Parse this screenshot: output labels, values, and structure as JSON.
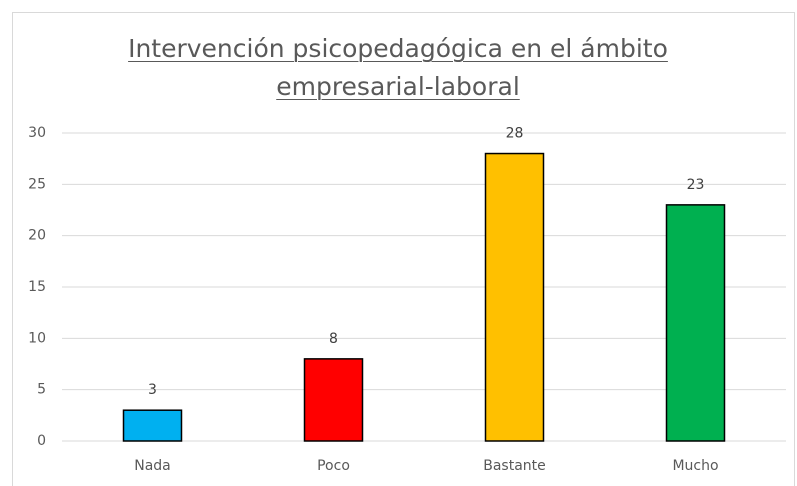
{
  "chart_data": {
    "type": "bar",
    "title": "Intervención psicopedagógica en el ámbito empresarial-laboral",
    "categories": [
      "Nada",
      "Poco",
      "Bastante",
      "Mucho"
    ],
    "values": [
      3,
      8,
      28,
      23
    ],
    "colors": [
      "#00b0f0",
      "#ff0000",
      "#ffc000",
      "#00b050"
    ],
    "ylim": [
      0,
      30
    ],
    "yticks": [
      0,
      5,
      10,
      15,
      20,
      25,
      30
    ],
    "grid": true
  }
}
